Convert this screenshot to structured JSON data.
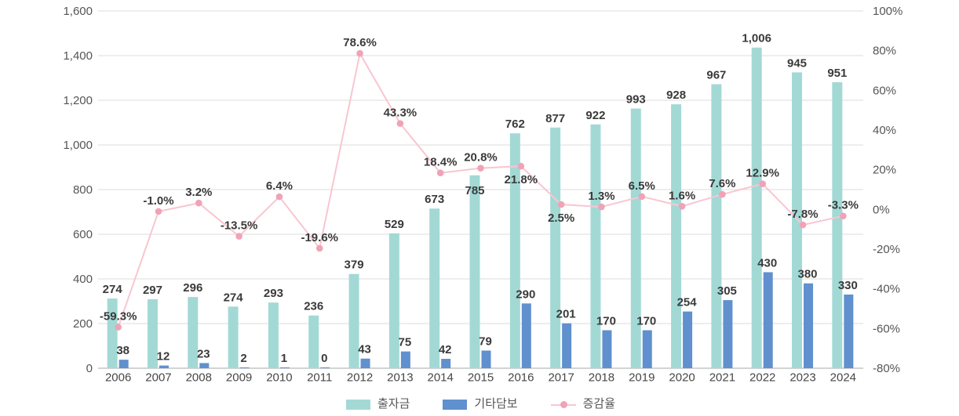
{
  "chart_data": {
    "type": "bar",
    "subtype": "combo-bar-line-dual-axis",
    "categories": [
      "2006",
      "2007",
      "2008",
      "2009",
      "2010",
      "2011",
      "2012",
      "2013",
      "2014",
      "2015",
      "2016",
      "2017",
      "2018",
      "2019",
      "2020",
      "2021",
      "2022",
      "2023",
      "2024"
    ],
    "series": [
      {
        "name": "출자금",
        "type": "bar",
        "color": "#a3d9d5",
        "values": [
          274,
          297,
          296,
          274,
          293,
          236,
          379,
          529,
          673,
          785,
          762,
          877,
          922,
          993,
          928,
          967,
          1006,
          945,
          951
        ]
      },
      {
        "name": "기타담보",
        "type": "bar",
        "color": "#6090ce",
        "values": [
          38,
          12,
          23,
          2,
          1,
          0,
          43,
          75,
          42,
          79,
          290,
          201,
          170,
          170,
          254,
          305,
          430,
          380,
          330
        ]
      },
      {
        "name": "증감율",
        "type": "line",
        "color": "#f8c6d1",
        "marker_color": "#f0a3b6",
        "axis": "right",
        "values": [
          -59.3,
          -1.0,
          3.2,
          -13.5,
          6.4,
          -19.6,
          78.6,
          43.3,
          18.4,
          20.8,
          21.8,
          2.5,
          1.3,
          6.5,
          1.6,
          7.6,
          12.9,
          -7.8,
          -3.3
        ]
      }
    ],
    "left_axis": {
      "min": 0,
      "max": 1600,
      "step": 200,
      "tick_labels": [
        "0",
        "200",
        "400",
        "600",
        "800",
        "1,000",
        "1,200",
        "1,400",
        "1,600"
      ]
    },
    "right_axis": {
      "min": -80,
      "max": 100,
      "step": 20,
      "tick_labels": [
        "-80%",
        "-60%",
        "-40%",
        "-20%",
        "0%",
        "20%",
        "40%",
        "60%",
        "80%",
        "100%"
      ]
    },
    "layout_hints": {
      "grid": true,
      "legend_position": "bottom",
      "primary_bar_height_mode": "sum-of-both-bar-series",
      "percent_label_below_indices": [
        10,
        11
      ],
      "primary_label_offset_overrides": {
        "9": {
          "dx": 0,
          "dy": 31
        }
      },
      "gridline_color": "#dcdcdc",
      "baseline_color": "#a8a8a8",
      "value_label_color": "#3a3a3a",
      "axis_label_color": "#555555",
      "category_label_color": "#474747"
    }
  }
}
